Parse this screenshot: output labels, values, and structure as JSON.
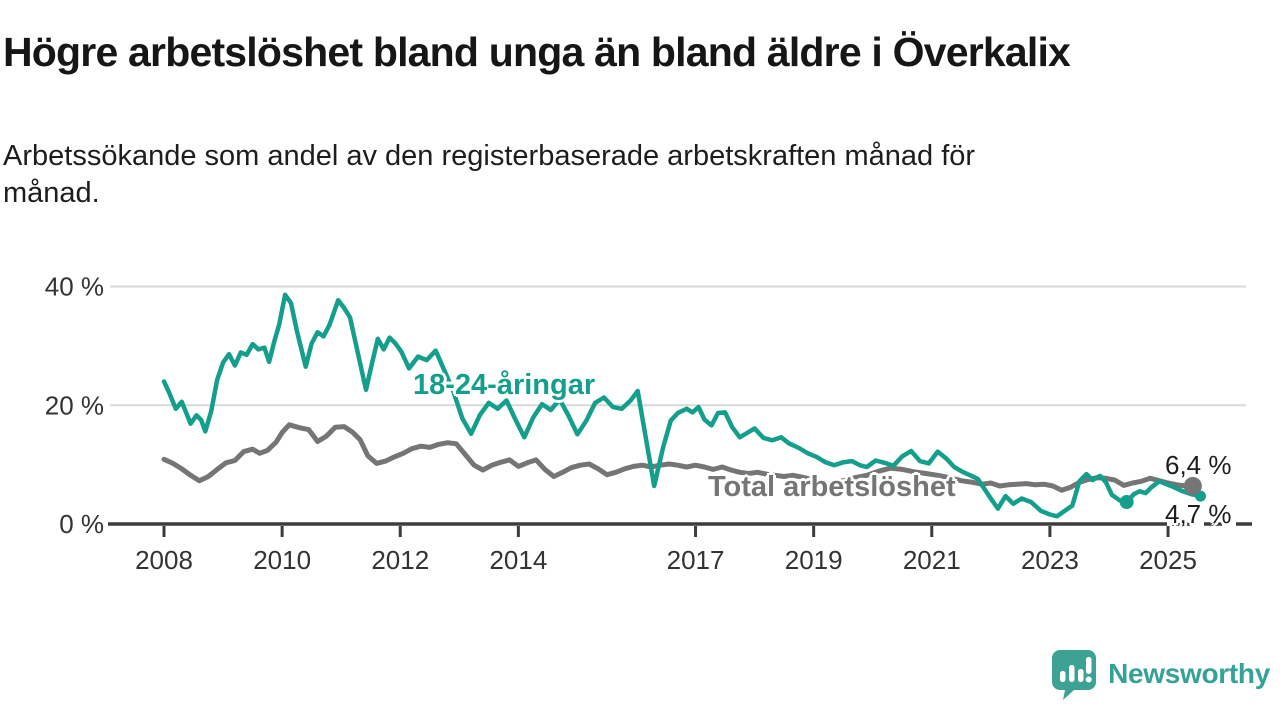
{
  "title": "Högre arbetslöshet bland unga än bland äldre i Överkalix",
  "subtitle_lines": [
    "Arbetssökande som andel av den registerbaserade arbetskraften månad för",
    "månad."
  ],
  "colors": {
    "young_line": "#149e8c",
    "total_line": "#757575",
    "axis": "#3c3c3c",
    "grid": "#d9d9d9",
    "tick_text": "#333333",
    "logo_teal": "#35a296"
  },
  "labels": {
    "young_series": "18-24-åringar",
    "total_series": "Total arbetslöshet",
    "total_end_value": "6,4 %",
    "young_end_value": "4,7 %"
  },
  "logo": {
    "text": "Newsworthy"
  },
  "chart_data": {
    "type": "line",
    "title": "Högre arbetslöshet bland unga än bland äldre i Överkalix",
    "subtitle": "Arbetssökande som andel av den registerbaserade arbetskraften månad för månad.",
    "x_unit": "year (monthly observations)",
    "y_unit": "percent of registered labour force",
    "ylim": [
      0,
      40
    ],
    "grid": "horizontal only",
    "legend_position": "labels drawn on lines",
    "yticks": [
      {
        "value": 0,
        "label": "0 %"
      },
      {
        "value": 20,
        "label": "20 %"
      },
      {
        "value": 40,
        "label": "40 %"
      }
    ],
    "xticks": [
      {
        "value": 2008,
        "label": "2008"
      },
      {
        "value": 2010,
        "label": "2010"
      },
      {
        "value": 2012,
        "label": "2012"
      },
      {
        "value": 2014,
        "label": "2014"
      },
      {
        "value": 2017,
        "label": "2017"
      },
      {
        "value": 2019,
        "label": "2019"
      },
      {
        "value": 2021,
        "label": "2021"
      },
      {
        "value": 2023,
        "label": "2023"
      },
      {
        "value": 2025,
        "label": "2025"
      }
    ],
    "series": [
      {
        "name": "Total arbetslöshet",
        "color": "#757575",
        "stroke_width": 5,
        "end_label": "6,4 %",
        "points": [
          [
            2008.0,
            10.9
          ],
          [
            2008.15,
            10.2
          ],
          [
            2008.3,
            9.3
          ],
          [
            2008.45,
            8.2
          ],
          [
            2008.6,
            7.3
          ],
          [
            2008.75,
            8.0
          ],
          [
            2008.9,
            9.2
          ],
          [
            2009.05,
            10.3
          ],
          [
            2009.2,
            10.7
          ],
          [
            2009.35,
            12.2
          ],
          [
            2009.5,
            12.6
          ],
          [
            2009.62,
            11.9
          ],
          [
            2009.75,
            12.4
          ],
          [
            2009.9,
            13.8
          ],
          [
            2010.0,
            15.4
          ],
          [
            2010.12,
            16.7
          ],
          [
            2010.3,
            16.2
          ],
          [
            2010.45,
            15.9
          ],
          [
            2010.6,
            13.9
          ],
          [
            2010.75,
            14.8
          ],
          [
            2010.9,
            16.3
          ],
          [
            2011.05,
            16.4
          ],
          [
            2011.2,
            15.4
          ],
          [
            2011.32,
            14.2
          ],
          [
            2011.45,
            11.5
          ],
          [
            2011.6,
            10.2
          ],
          [
            2011.75,
            10.6
          ],
          [
            2011.9,
            11.3
          ],
          [
            2012.05,
            11.9
          ],
          [
            2012.2,
            12.7
          ],
          [
            2012.35,
            13.1
          ],
          [
            2012.5,
            12.9
          ],
          [
            2012.65,
            13.4
          ],
          [
            2012.8,
            13.7
          ],
          [
            2012.95,
            13.5
          ],
          [
            2013.1,
            11.7
          ],
          [
            2013.25,
            9.9
          ],
          [
            2013.4,
            9.1
          ],
          [
            2013.55,
            9.9
          ],
          [
            2013.7,
            10.4
          ],
          [
            2013.85,
            10.8
          ],
          [
            2014.0,
            9.7
          ],
          [
            2014.15,
            10.3
          ],
          [
            2014.3,
            10.8
          ],
          [
            2014.45,
            9.2
          ],
          [
            2014.6,
            8.0
          ],
          [
            2014.75,
            8.7
          ],
          [
            2014.9,
            9.5
          ],
          [
            2015.05,
            9.9
          ],
          [
            2015.2,
            10.1
          ],
          [
            2015.35,
            9.3
          ],
          [
            2015.5,
            8.3
          ],
          [
            2015.65,
            8.7
          ],
          [
            2015.8,
            9.3
          ],
          [
            2015.95,
            9.7
          ],
          [
            2016.1,
            9.9
          ],
          [
            2016.25,
            9.6
          ],
          [
            2016.4,
            9.9
          ],
          [
            2016.55,
            10.1
          ],
          [
            2016.7,
            9.9
          ],
          [
            2016.85,
            9.6
          ],
          [
            2017.0,
            9.9
          ],
          [
            2017.15,
            9.6
          ],
          [
            2017.3,
            9.2
          ],
          [
            2017.45,
            9.6
          ],
          [
            2017.6,
            9.1
          ],
          [
            2017.75,
            8.7
          ],
          [
            2017.9,
            8.5
          ],
          [
            2018.05,
            8.7
          ],
          [
            2018.2,
            8.4
          ],
          [
            2018.35,
            8.2
          ],
          [
            2018.5,
            8.0
          ],
          [
            2018.65,
            8.2
          ],
          [
            2018.8,
            7.9
          ],
          [
            2019.0,
            7.4
          ],
          [
            2019.15,
            6.9
          ],
          [
            2019.3,
            6.7
          ],
          [
            2019.5,
            7.3
          ],
          [
            2019.7,
            7.8
          ],
          [
            2019.9,
            8.2
          ],
          [
            2020.1,
            8.9
          ],
          [
            2020.3,
            9.4
          ],
          [
            2020.5,
            9.2
          ],
          [
            2020.7,
            8.8
          ],
          [
            2020.9,
            8.5
          ],
          [
            2021.1,
            8.2
          ],
          [
            2021.3,
            7.8
          ],
          [
            2021.5,
            7.3
          ],
          [
            2021.7,
            7.0
          ],
          [
            2021.85,
            6.7
          ],
          [
            2022.0,
            6.9
          ],
          [
            2022.15,
            6.4
          ],
          [
            2022.3,
            6.6
          ],
          [
            2022.45,
            6.7
          ],
          [
            2022.6,
            6.8
          ],
          [
            2022.75,
            6.6
          ],
          [
            2022.9,
            6.7
          ],
          [
            2023.05,
            6.4
          ],
          [
            2023.2,
            5.7
          ],
          [
            2023.35,
            6.2
          ],
          [
            2023.5,
            7.0
          ],
          [
            2023.65,
            7.5
          ],
          [
            2023.8,
            7.8
          ],
          [
            2023.95,
            7.7
          ],
          [
            2024.1,
            7.4
          ],
          [
            2024.25,
            6.5
          ],
          [
            2024.4,
            6.9
          ],
          [
            2024.55,
            7.2
          ],
          [
            2024.7,
            7.7
          ],
          [
            2024.85,
            7.3
          ],
          [
            2025.0,
            6.9
          ],
          [
            2025.15,
            6.6
          ],
          [
            2025.3,
            6.4
          ],
          [
            2025.42,
            6.4
          ]
        ]
      },
      {
        "name": "18-24-åringar",
        "color": "#149e8c",
        "stroke_width": 4.5,
        "end_label": "4,7 %",
        "points": [
          [
            2008.0,
            24.0
          ],
          [
            2008.08,
            22.3
          ],
          [
            2008.2,
            19.4
          ],
          [
            2008.3,
            20.6
          ],
          [
            2008.45,
            16.9
          ],
          [
            2008.55,
            18.3
          ],
          [
            2008.63,
            17.5
          ],
          [
            2008.7,
            15.6
          ],
          [
            2008.8,
            19.0
          ],
          [
            2008.9,
            24.3
          ],
          [
            2009.0,
            27.2
          ],
          [
            2009.1,
            28.6
          ],
          [
            2009.2,
            26.7
          ],
          [
            2009.3,
            28.9
          ],
          [
            2009.4,
            28.5
          ],
          [
            2009.5,
            30.3
          ],
          [
            2009.6,
            29.4
          ],
          [
            2009.7,
            29.7
          ],
          [
            2009.78,
            27.3
          ],
          [
            2009.86,
            30.5
          ],
          [
            2009.95,
            33.6
          ],
          [
            2010.05,
            38.6
          ],
          [
            2010.15,
            37.2
          ],
          [
            2010.25,
            32.5
          ],
          [
            2010.4,
            26.5
          ],
          [
            2010.5,
            30.4
          ],
          [
            2010.6,
            32.3
          ],
          [
            2010.7,
            31.6
          ],
          [
            2010.8,
            33.5
          ],
          [
            2010.95,
            37.7
          ],
          [
            2011.05,
            36.4
          ],
          [
            2011.15,
            34.8
          ],
          [
            2011.3,
            28.0
          ],
          [
            2011.42,
            22.6
          ],
          [
            2011.52,
            27.0
          ],
          [
            2011.62,
            31.2
          ],
          [
            2011.72,
            29.4
          ],
          [
            2011.82,
            31.4
          ],
          [
            2011.92,
            30.4
          ],
          [
            2012.02,
            29.0
          ],
          [
            2012.15,
            26.2
          ],
          [
            2012.3,
            28.2
          ],
          [
            2012.45,
            27.6
          ],
          [
            2012.6,
            29.2
          ],
          [
            2012.75,
            25.8
          ],
          [
            2012.9,
            22.3
          ],
          [
            2013.05,
            17.8
          ],
          [
            2013.2,
            15.2
          ],
          [
            2013.35,
            18.4
          ],
          [
            2013.5,
            20.4
          ],
          [
            2013.65,
            19.4
          ],
          [
            2013.8,
            20.8
          ],
          [
            2013.95,
            17.6
          ],
          [
            2014.1,
            14.6
          ],
          [
            2014.25,
            17.9
          ],
          [
            2014.4,
            20.2
          ],
          [
            2014.55,
            19.2
          ],
          [
            2014.7,
            21.0
          ],
          [
            2014.85,
            18.2
          ],
          [
            2015.0,
            15.1
          ],
          [
            2015.15,
            17.4
          ],
          [
            2015.3,
            20.4
          ],
          [
            2015.45,
            21.3
          ],
          [
            2015.6,
            19.7
          ],
          [
            2015.75,
            19.4
          ],
          [
            2015.9,
            20.8
          ],
          [
            2016.02,
            22.4
          ],
          [
            2016.15,
            15.0
          ],
          [
            2016.3,
            6.4
          ],
          [
            2016.45,
            12.9
          ],
          [
            2016.58,
            17.4
          ],
          [
            2016.7,
            18.7
          ],
          [
            2016.85,
            19.4
          ],
          [
            2016.95,
            18.8
          ],
          [
            2017.05,
            19.7
          ],
          [
            2017.15,
            17.6
          ],
          [
            2017.27,
            16.6
          ],
          [
            2017.38,
            18.7
          ],
          [
            2017.5,
            18.8
          ],
          [
            2017.62,
            16.3
          ],
          [
            2017.75,
            14.6
          ],
          [
            2017.9,
            15.5
          ],
          [
            2018.0,
            16.1
          ],
          [
            2018.15,
            14.5
          ],
          [
            2018.3,
            14.1
          ],
          [
            2018.45,
            14.6
          ],
          [
            2018.58,
            13.6
          ],
          [
            2018.75,
            12.8
          ],
          [
            2018.9,
            11.9
          ],
          [
            2019.05,
            11.3
          ],
          [
            2019.2,
            10.4
          ],
          [
            2019.35,
            9.9
          ],
          [
            2019.5,
            10.4
          ],
          [
            2019.65,
            10.6
          ],
          [
            2019.78,
            9.9
          ],
          [
            2019.9,
            9.6
          ],
          [
            2020.05,
            10.7
          ],
          [
            2020.2,
            10.3
          ],
          [
            2020.35,
            9.8
          ],
          [
            2020.5,
            11.4
          ],
          [
            2020.65,
            12.3
          ],
          [
            2020.8,
            10.6
          ],
          [
            2020.95,
            10.2
          ],
          [
            2021.1,
            12.2
          ],
          [
            2021.25,
            11.0
          ],
          [
            2021.38,
            9.6
          ],
          [
            2021.52,
            8.8
          ],
          [
            2021.65,
            8.2
          ],
          [
            2021.78,
            7.6
          ],
          [
            2021.9,
            5.8
          ],
          [
            2022.0,
            4.3
          ],
          [
            2022.12,
            2.6
          ],
          [
            2022.25,
            4.7
          ],
          [
            2022.38,
            3.4
          ],
          [
            2022.52,
            4.3
          ],
          [
            2022.68,
            3.7
          ],
          [
            2022.85,
            2.2
          ],
          [
            2023.0,
            1.6
          ],
          [
            2023.12,
            1.3
          ],
          [
            2023.25,
            2.2
          ],
          [
            2023.38,
            3.1
          ],
          [
            2023.5,
            7.2
          ],
          [
            2023.62,
            8.4
          ],
          [
            2023.72,
            7.4
          ],
          [
            2023.85,
            8.1
          ],
          [
            2023.95,
            7.0
          ],
          [
            2024.05,
            4.9
          ],
          [
            2024.18,
            4.0
          ],
          [
            2024.3,
            3.7
          ],
          [
            2024.42,
            5.0
          ],
          [
            2024.52,
            5.5
          ],
          [
            2024.62,
            5.2
          ],
          [
            2024.72,
            6.2
          ],
          [
            2024.85,
            7.2
          ],
          [
            2025.0,
            6.6
          ],
          [
            2025.1,
            6.2
          ],
          [
            2025.25,
            5.5
          ],
          [
            2025.4,
            5.0
          ],
          [
            2025.55,
            4.7
          ]
        ]
      }
    ],
    "markers": [
      {
        "series": "18-24-åringar",
        "x": 2024.3,
        "y": 3.7,
        "r": 7,
        "color": "#149e8c"
      },
      {
        "series": "18-24-åringar",
        "x": 2025.55,
        "y": 4.7,
        "r": 5.5,
        "color": "#149e8c"
      },
      {
        "series": "Total arbetslöshet",
        "x": 2025.42,
        "y": 6.4,
        "r": 9,
        "color": "#757575"
      }
    ],
    "latest_values": {
      "Total arbetslöshet": "6,4 %",
      "18-24-åringar": "4,7 %"
    }
  }
}
